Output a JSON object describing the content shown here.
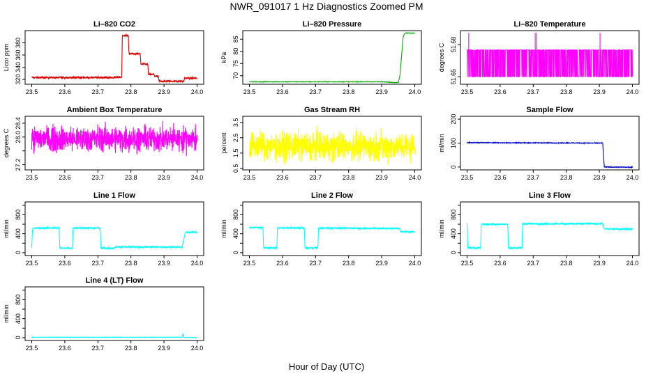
{
  "figure": {
    "title": "NWR_091017  1 Hz Diagnostics Zoomed PM",
    "xlabel": "Hour of Day (UTC)"
  },
  "chart_data": [
    {
      "id": "co2",
      "type": "line",
      "title": "Li–820 CO2",
      "ylabel": "Licor ppm",
      "color": "#dd0000",
      "xlim": [
        23.5,
        24.0
      ],
      "ylim": [
        312,
        400
      ],
      "xticks": [
        "23.5",
        "23.6",
        "23.7",
        "23.8",
        "23.9",
        "24.0"
      ],
      "yticks": [
        320,
        340,
        360,
        380
      ],
      "noise": 0.8,
      "series": [
        {
          "x": [
            23.5,
            23.75,
            23.752,
            23.772,
            23.774,
            23.792,
            23.794,
            23.828,
            23.83,
            23.851,
            23.853,
            23.87,
            23.872,
            23.883,
            23.885,
            23.96,
            23.962,
            24.0
          ],
          "y": [
            323,
            323,
            323.5,
            323.5,
            392,
            392,
            362,
            362,
            345,
            345,
            328,
            328,
            325,
            325,
            317,
            317,
            322,
            322
          ]
        }
      ]
    },
    {
      "id": "pressure",
      "type": "line",
      "title": "Li–820 Pressure",
      "ylabel": "kPa",
      "color": "#00aa00",
      "xlim": [
        23.5,
        24.0
      ],
      "ylim": [
        66.5,
        88.5
      ],
      "xticks": [
        "23.5",
        "23.6",
        "23.7",
        "23.8",
        "23.9",
        "24.0"
      ],
      "yticks": [
        70,
        75,
        80,
        85
      ],
      "noise": 0.05,
      "series": [
        {
          "x": [
            23.5,
            23.91,
            23.92,
            23.93,
            23.95,
            23.955,
            23.96,
            23.965,
            23.97,
            24.0
          ],
          "y": [
            67.5,
            67.5,
            67.4,
            67.2,
            67.2,
            70,
            78,
            86,
            87.5,
            87.5
          ]
        }
      ]
    },
    {
      "id": "licor_temp",
      "type": "line",
      "title": "Li–820 Temperature",
      "ylabel": "degrees C",
      "color": "#ff00ff",
      "xlim": [
        23.5,
        24.0
      ],
      "ylim": [
        51.643,
        51.693
      ],
      "xticks": [
        "23.5",
        "23.6",
        "23.7",
        "23.8",
        "23.9",
        "24.0"
      ],
      "yticks": [
        51.65,
        51.68
      ],
      "ytick_labels": [
        "51.65",
        "51.68"
      ],
      "pattern": "binary",
      "levels": [
        51.65,
        51.675
      ],
      "spikes": [
        [
          23.505,
          51.691
        ],
        [
          23.706,
          51.691
        ],
        [
          23.711,
          51.691
        ],
        [
          23.902,
          51.691
        ]
      ],
      "series": []
    },
    {
      "id": "box_temp",
      "type": "line",
      "title": "Ambient Box Temperature",
      "ylabel": "degrees C",
      "color": "#ff00ff",
      "xlim": [
        23.5,
        24.0
      ],
      "ylim": [
        27.05,
        28.6
      ],
      "xticks": [
        "23.5",
        "23.6",
        "23.7",
        "23.8",
        "23.9",
        "24.0"
      ],
      "yticks": [
        27.2,
        27.6,
        28.0,
        28.4
      ],
      "ytick_labels": [
        "27.2",
        "",
        "28.0",
        "28.4"
      ],
      "noise": 0.18,
      "series": [
        {
          "x": [
            23.5,
            24.0
          ],
          "y": [
            27.95,
            27.95
          ]
        }
      ]
    },
    {
      "id": "rh",
      "type": "line",
      "title": "Gas Stream RH",
      "ylabel": "percent",
      "color": "#ffff00",
      "xlim": [
        23.5,
        24.0
      ],
      "ylim": [
        0.4,
        3.9
      ],
      "xticks": [
        "23.5",
        "23.6",
        "23.7",
        "23.8",
        "23.9",
        "24.0"
      ],
      "yticks": [
        0.5,
        1.5,
        2.5,
        3.5
      ],
      "ytick_labels": [
        "0.5",
        "1.5",
        "2.5",
        "3.5"
      ],
      "noise": 0.45,
      "series": [
        {
          "x": [
            23.5,
            24.0
          ],
          "y": [
            1.95,
            1.95
          ]
        }
      ]
    },
    {
      "id": "sample_flow",
      "type": "line",
      "title": "Sample Flow",
      "ylabel": "ml/min",
      "color": "#0000cc",
      "xlim": [
        23.5,
        24.0
      ],
      "ylim": [
        -12,
        212
      ],
      "xticks": [
        "23.5",
        "23.6",
        "23.7",
        "23.8",
        "23.9",
        "24.0"
      ],
      "yticks": [
        0,
        100,
        200
      ],
      "noise": 0.8,
      "series": [
        {
          "x": [
            23.5,
            23.91,
            23.915,
            24.0
          ],
          "y": [
            102,
            100,
            0,
            -1
          ]
        }
      ]
    },
    {
      "id": "line1",
      "type": "line",
      "title": "Line 1 Flow",
      "ylabel": "ml/min",
      "color": "#00ffff",
      "xlim": [
        23.5,
        24.0
      ],
      "ylim": [
        -60,
        1070
      ],
      "xticks": [
        "23.5",
        "23.6",
        "23.7",
        "23.8",
        "23.9",
        "24.0"
      ],
      "yticks": [
        0,
        200,
        400,
        600,
        800,
        1000
      ],
      "ytick_labels": [
        "0",
        "400",
        "800"
      ],
      "noise": 8,
      "series": [
        {
          "x": [
            23.5,
            23.502,
            23.504,
            23.583,
            23.585,
            23.623,
            23.625,
            23.707,
            23.709,
            23.75,
            23.752,
            23.955,
            23.96,
            23.965,
            24.0
          ],
          "y": [
            90,
            470,
            520,
            520,
            95,
            95,
            520,
            520,
            95,
            95,
            120,
            120,
            290,
            430,
            430
          ]
        }
      ]
    },
    {
      "id": "line2",
      "type": "line",
      "title": "Line 2 Flow",
      "ylabel": "ml/min",
      "color": "#00ffff",
      "xlim": [
        23.5,
        24.0
      ],
      "ylim": [
        -60,
        1070
      ],
      "xticks": [
        "23.5",
        "23.6",
        "23.7",
        "23.8",
        "23.9",
        "24.0"
      ],
      "yticks": [
        0,
        200,
        400,
        600,
        800,
        1000
      ],
      "ytick_labels": [
        "0",
        "400",
        "800"
      ],
      "noise": 8,
      "series": [
        {
          "x": [
            23.5,
            23.541,
            23.543,
            23.583,
            23.585,
            23.666,
            23.668,
            23.707,
            23.709,
            23.955,
            23.958,
            24.0
          ],
          "y": [
            530,
            530,
            100,
            100,
            520,
            520,
            100,
            100,
            520,
            510,
            440,
            440
          ]
        }
      ]
    },
    {
      "id": "line3",
      "type": "line",
      "title": "Line 3 Flow",
      "ylabel": "ml/min",
      "color": "#00ffff",
      "xlim": [
        23.5,
        24.0
      ],
      "ylim": [
        -60,
        1070
      ],
      "xticks": [
        "23.5",
        "23.6",
        "23.7",
        "23.8",
        "23.9",
        "24.0"
      ],
      "yticks": [
        0,
        200,
        400,
        600,
        800,
        1000
      ],
      "ytick_labels": [
        "0",
        "400",
        "800"
      ],
      "noise": 8,
      "series": [
        {
          "x": [
            23.5,
            23.502,
            23.504,
            23.541,
            23.543,
            23.623,
            23.625,
            23.666,
            23.668,
            23.91,
            23.915,
            24.0
          ],
          "y": [
            620,
            100,
            100,
            100,
            600,
            600,
            100,
            100,
            610,
            610,
            500,
            500
          ]
        }
      ]
    },
    {
      "id": "line4",
      "type": "line",
      "title": "Line 4 (LT) Flow",
      "ylabel": "ml/min",
      "color": "#00ffff",
      "xlim": [
        23.5,
        24.0
      ],
      "ylim": [
        -60,
        1070
      ],
      "xticks": [
        "23.5",
        "23.6",
        "23.7",
        "23.8",
        "23.9",
        "24.0"
      ],
      "yticks": [
        0,
        200,
        400,
        600,
        800,
        1000
      ],
      "ytick_labels": [
        "0",
        "400",
        "800"
      ],
      "noise": 2,
      "series": [
        {
          "x": [
            23.5,
            23.955,
            23.957,
            23.959,
            23.961,
            24.0
          ],
          "y": [
            8,
            8,
            90,
            30,
            5,
            3
          ]
        }
      ]
    }
  ]
}
